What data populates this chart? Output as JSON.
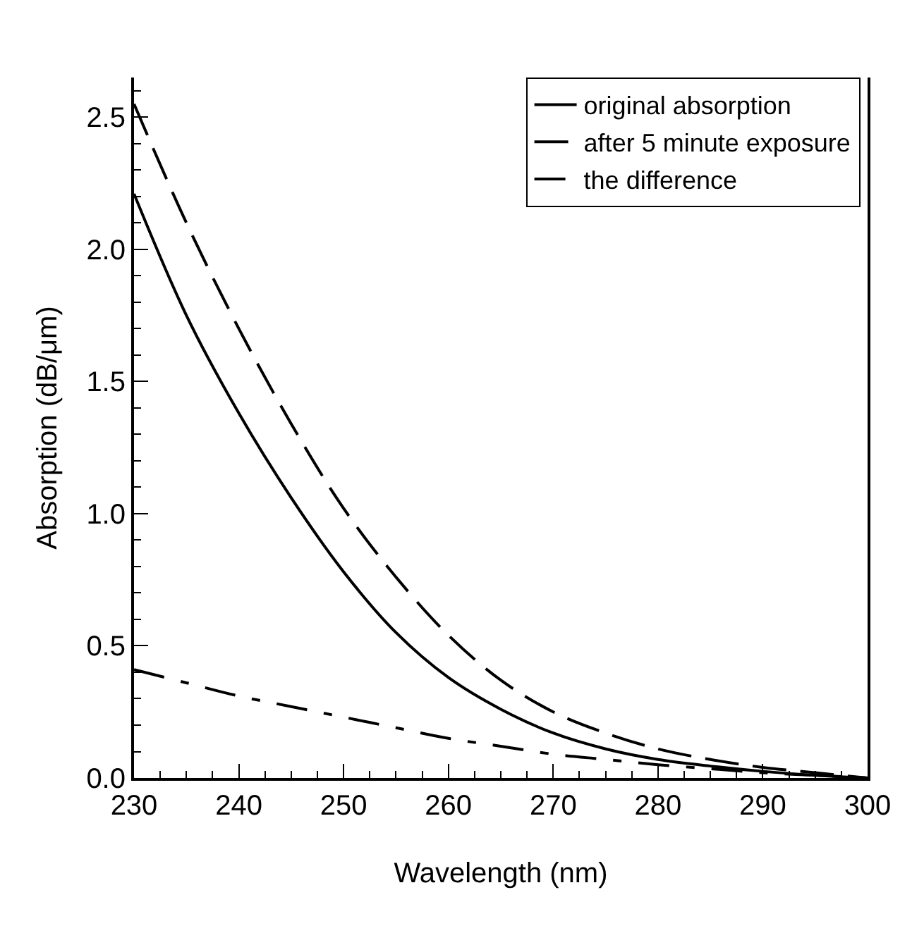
{
  "chart_data": {
    "type": "line",
    "xlabel": "Wavelength (nm)",
    "ylabel": "Absorption (dB/μm)",
    "xlim": [
      230,
      300
    ],
    "xticks": [
      230,
      240,
      250,
      260,
      270,
      280,
      290,
      300
    ],
    "ylim": [
      0,
      2.65
    ],
    "yticks": [
      {
        "value": 0,
        "label": "0.0"
      },
      0.5,
      {
        "value": 1,
        "label": "1.0"
      },
      1.5,
      {
        "value": 2,
        "label": "2.0"
      },
      2.5
    ],
    "x": [
      230,
      235,
      240,
      245,
      250,
      255,
      260,
      265,
      270,
      275,
      280,
      285,
      290,
      295,
      300
    ],
    "series": [
      {
        "name": "original absorption",
        "color": "#000000",
        "line_style": "solid",
        "values": [
          2.21,
          1.75,
          1.38,
          1.06,
          0.78,
          0.55,
          0.38,
          0.26,
          0.17,
          0.11,
          0.07,
          0.045,
          0.025,
          0.01,
          0
        ]
      },
      {
        "name": "after 5 minute exposure",
        "color": "#000000",
        "line_style": "dashed",
        "values": [
          2.55,
          2.1,
          1.7,
          1.34,
          1.02,
          0.76,
          0.54,
          0.37,
          0.25,
          0.17,
          0.11,
          0.07,
          0.04,
          0.02,
          0
        ]
      },
      {
        "name": "the difference",
        "color": "#000000",
        "line_style": "dashdot",
        "values": [
          0.41,
          0.36,
          0.31,
          0.27,
          0.23,
          0.19,
          0.15,
          0.12,
          0.09,
          0.07,
          0.05,
          0.035,
          0.02,
          0.01,
          0
        ]
      }
    ],
    "legend": "top right",
    "marker": "none"
  }
}
